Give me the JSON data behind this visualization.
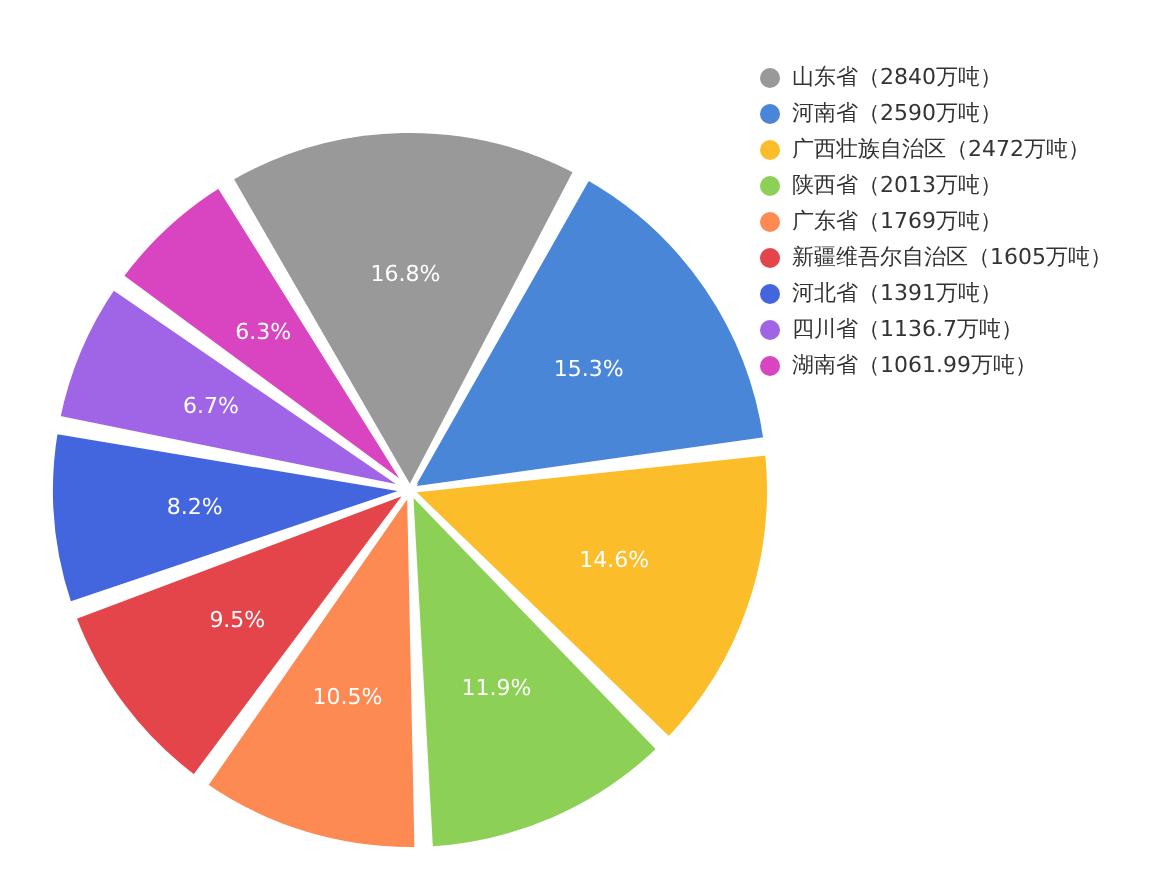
{
  "chart_data": {
    "type": "pie",
    "categories": [
      "山东省（2840万吨）",
      "河南省（2590万吨）",
      "广西壮族自治区（2472万吨）",
      "陕西省（2013万吨）",
      "广东省（1769万吨）",
      "新疆维吾尔自治区（1605万吨）",
      "河北省（1391万吨）",
      "四川省（1136.7万吨）",
      "湖南省（1061.99万吨）"
    ],
    "values": [
      16.8,
      15.3,
      14.6,
      11.9,
      10.5,
      9.5,
      8.2,
      6.7,
      6.3
    ],
    "value_labels": [
      "16.8%",
      "15.3%",
      "14.6%",
      "11.9%",
      "10.5%",
      "9.5%",
      "8.2%",
      "6.7%",
      "6.3%"
    ],
    "colors": [
      "#999999",
      "#4a86d8",
      "#fbbd2a",
      "#8cd055",
      "#fd8a53",
      "#e4454b",
      "#4366de",
      "#a064e6",
      "#d945c1"
    ],
    "legend": "top right"
  }
}
